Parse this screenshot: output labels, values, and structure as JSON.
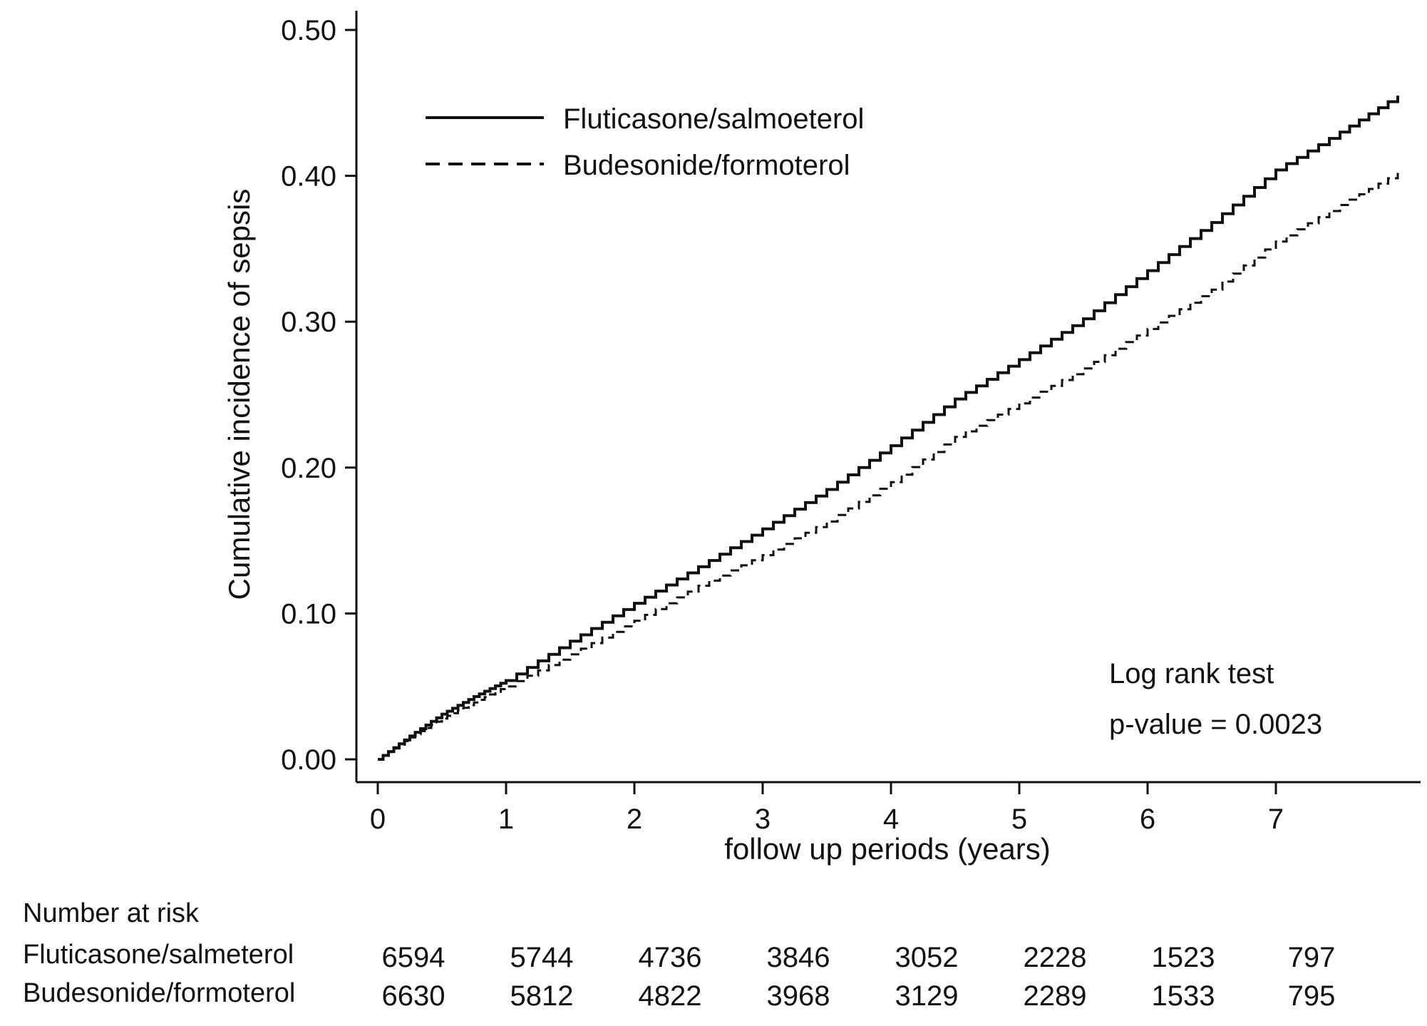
{
  "chart_data": {
    "type": "line",
    "title": "",
    "xlabel": "follow up periods (years)",
    "ylabel": "Cumulative incidence of sepsis",
    "xlim": [
      0,
      8
    ],
    "ylim": [
      0,
      0.5
    ],
    "x_ticks": [
      "0",
      "1",
      "2",
      "3",
      "4",
      "5",
      "6",
      "7"
    ],
    "y_ticks": [
      "0.00",
      "0.10",
      "0.20",
      "0.30",
      "0.40",
      "0.50"
    ],
    "grid": false,
    "legend_position": "top-left",
    "series": [
      {
        "name": "Fluticasone/salmoeterol",
        "style": "solid",
        "x": [
          0,
          0.25,
          0.5,
          0.75,
          1.0,
          1.5,
          2.0,
          2.5,
          3.0,
          3.5,
          4.0,
          4.5,
          5.0,
          5.5,
          6.0,
          6.5,
          7.0,
          7.5,
          7.95
        ],
        "y": [
          0,
          0.016,
          0.031,
          0.043,
          0.054,
          0.081,
          0.107,
          0.132,
          0.158,
          0.185,
          0.215,
          0.247,
          0.274,
          0.302,
          0.335,
          0.368,
          0.404,
          0.43,
          0.455
        ]
      },
      {
        "name": "Budesonide/formoterol",
        "style": "dashed",
        "x": [
          0,
          0.25,
          0.5,
          0.75,
          1.0,
          1.5,
          2.0,
          2.5,
          3.0,
          3.5,
          4.0,
          4.5,
          5.0,
          5.5,
          6.0,
          6.5,
          7.0,
          7.5,
          7.95
        ],
        "y": [
          0,
          0.015,
          0.028,
          0.039,
          0.05,
          0.072,
          0.095,
          0.119,
          0.14,
          0.163,
          0.19,
          0.221,
          0.244,
          0.268,
          0.295,
          0.322,
          0.355,
          0.38,
          0.402
        ]
      }
    ],
    "annotations": {
      "test_label": "Log rank test",
      "pvalue_label": "p-value = 0.0023"
    },
    "risk_table": {
      "title": "Number at risk",
      "rows": [
        {
          "label": "Fluticasone/salmeterol",
          "values": [
            "6594",
            "5744",
            "4736",
            "3846",
            "3052",
            "2228",
            "1523",
            "797"
          ]
        },
        {
          "label": "Budesonide/formoterol",
          "values": [
            "6630",
            "5812",
            "4822",
            "3968",
            "3129",
            "2289",
            "1533",
            "795"
          ]
        }
      ]
    }
  }
}
